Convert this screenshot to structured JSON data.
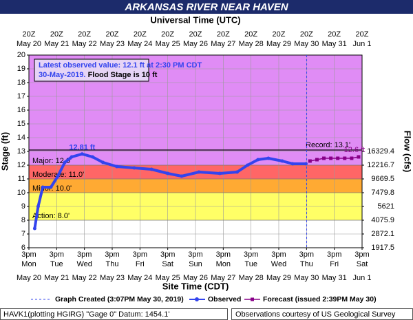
{
  "chart_data": {
    "type": "hydrograph",
    "title": "ARKANSAS RIVER NEAR HAVEN",
    "top_axis_title": "Universal Time (UTC)",
    "x_axis_title": "Site Time (CDT)",
    "y_axis_title": "Stage (ft)",
    "y2_axis_title": "Flow (cfs)",
    "xlim": [
      "2019-05-20T15:00",
      "2019-06-01T15:00"
    ],
    "xticks": [
      "2019-05-20T15:00",
      "2019-05-21T15:00",
      "2019-05-22T15:00",
      "2019-05-23T15:00",
      "2019-05-24T15:00",
      "2019-05-25T15:00",
      "2019-05-26T15:00",
      "2019-05-27T15:00",
      "2019-05-28T15:00",
      "2019-05-29T15:00",
      "2019-05-30T15:00",
      "2019-05-31T15:00",
      "2019-06-01T15:00"
    ],
    "top_tick_times": [
      "20Z",
      "20Z",
      "20Z",
      "20Z",
      "20Z",
      "20Z",
      "20Z",
      "20Z",
      "20Z",
      "20Z",
      "20Z",
      "20Z",
      "20Z"
    ],
    "top_tick_dates": [
      "May 20",
      "May 21",
      "May 22",
      "May 23",
      "May 24",
      "May 25",
      "May 26",
      "May 27",
      "May 28",
      "May 29",
      "May 30",
      "May 31",
      "Jun 1"
    ],
    "bottom_tick_times": [
      "3pm",
      "3pm",
      "3pm",
      "3pm",
      "3pm",
      "3pm",
      "3pm",
      "3pm",
      "3pm",
      "3pm",
      "3pm",
      "3pm",
      "3pm"
    ],
    "bottom_tick_weekdays": [
      "Mon",
      "Tue",
      "Wed",
      "Thu",
      "Fri",
      "Sat",
      "Sun",
      "Mon",
      "Tue",
      "Wed",
      "Thu",
      "Fri",
      "Sat"
    ],
    "bottom_tick_dates": [
      "May 20",
      "May 21",
      "May 22",
      "May 23",
      "May 24",
      "May 25",
      "May 26",
      "May 27",
      "May 28",
      "May 29",
      "May 30",
      "May 31",
      "Jun 1"
    ],
    "ylim": [
      6,
      20
    ],
    "yticks": [
      6,
      7,
      8,
      9,
      10,
      11,
      12,
      13,
      14,
      15,
      16,
      17,
      18,
      19,
      20
    ],
    "y2ticks": [
      1917.5,
      2872.1,
      4075.9,
      5621.0,
      7479.8,
      9669.5,
      12216.7,
      16329.4
    ],
    "grid": true,
    "flood_levels": [
      {
        "label": "Action: 8.0'",
        "value": 8,
        "color": "#ffff66"
      },
      {
        "label": "Minor: 10.0'",
        "value": 10,
        "color": "#ffaa33"
      },
      {
        "label": "Moderate: 11.0'",
        "value": 11,
        "color": "#ff6666"
      },
      {
        "label": "Major: 12.0'",
        "value": 12,
        "color": "#e08cf5"
      }
    ],
    "record": {
      "label": "Record: 13.1'",
      "value": 13.1
    },
    "graph_created": "2019-05-30T15:07",
    "series": [
      {
        "name": "Observed",
        "color": "#3344ee",
        "x": [
          "2019-05-20T20:00",
          "2019-05-20T23:00",
          "2019-05-21T03:00",
          "2019-05-21T10:00",
          "2019-05-21T16:00",
          "2019-05-21T22:00",
          "2019-05-22T04:00",
          "2019-05-22T13:00",
          "2019-05-22T22:00",
          "2019-05-23T07:00",
          "2019-05-23T19:00",
          "2019-05-24T10:00",
          "2019-05-25T01:00",
          "2019-05-25T15:00",
          "2019-05-26T03:00",
          "2019-05-26T18:00",
          "2019-05-27T12:00",
          "2019-05-28T03:00",
          "2019-05-28T12:00",
          "2019-05-28T21:00",
          "2019-05-29T06:00",
          "2019-05-29T18:00",
          "2019-05-30T03:00",
          "2019-05-30T14:30"
        ],
        "values": [
          7.4,
          9.0,
          10.4,
          10.4,
          11.2,
          12.2,
          12.6,
          12.81,
          12.6,
          12.2,
          11.9,
          11.8,
          11.7,
          11.4,
          11.2,
          11.5,
          11.4,
          11.5,
          12.0,
          12.4,
          12.5,
          12.3,
          12.1,
          12.1
        ]
      },
      {
        "name": "Forecast (issued 2:39PM May 30)",
        "color": "#880088",
        "x": [
          "2019-05-30T18:00",
          "2019-05-31T00:00",
          "2019-05-31T06:00",
          "2019-05-31T12:00",
          "2019-05-31T18:00",
          "2019-06-01T00:00",
          "2019-06-01T06:00",
          "2019-06-01T12:00"
        ],
        "values": [
          12.3,
          12.4,
          12.5,
          12.5,
          12.5,
          12.5,
          12.5,
          12.6
        ]
      }
    ],
    "peak_label": "12.81 ft",
    "forecast_crest_label": "12.6 ft",
    "info_line1": "Latest observed value: 12.1 ft at 2:30 PM CDT",
    "info_date": "30-May-2019.",
    "info_flood_stage": "Flood Stage is 10 ft",
    "legend_graph_created": "Graph Created (3:07PM May 30, 2019)",
    "footer_left": "HAVK1(plotting HGIRG) \"Gage 0\" Datum: 1454.1'",
    "footer_right": "Observations courtesy of US Geological Survey"
  }
}
